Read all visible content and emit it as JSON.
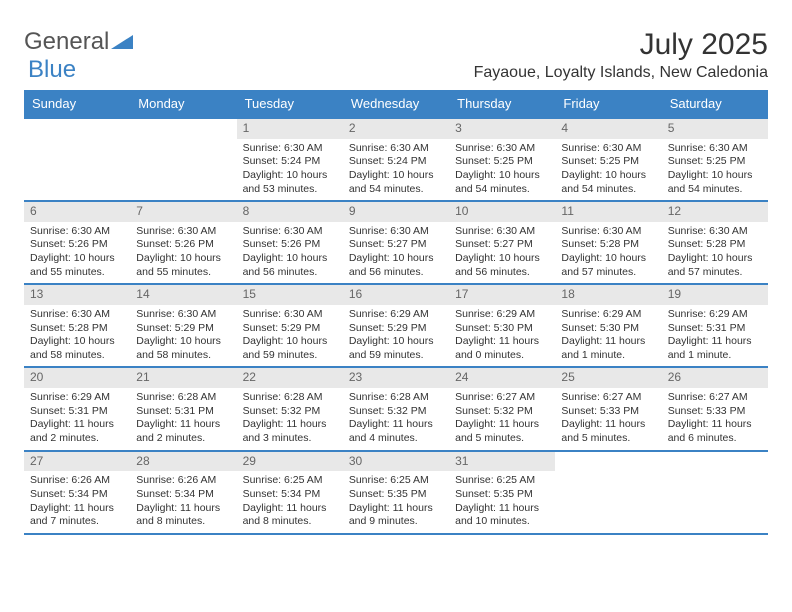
{
  "header": {
    "logo_text_1": "General",
    "logo_text_2": "Blue",
    "logo_color_1": "#777777",
    "logo_color_2": "#3b82c4",
    "month_title": "July 2025",
    "location": "Fayaoue, Loyalty Islands, New Caledonia"
  },
  "style": {
    "header_bg": "#3b82c4",
    "daynum_bg": "#e8e8e8",
    "border_color": "#3b82c4",
    "text_color": "#333333"
  },
  "day_names": [
    "Sunday",
    "Monday",
    "Tuesday",
    "Wednesday",
    "Thursday",
    "Friday",
    "Saturday"
  ],
  "weeks": [
    [
      {
        "n": "",
        "sr": "",
        "ss": "",
        "dl": ""
      },
      {
        "n": "",
        "sr": "",
        "ss": "",
        "dl": ""
      },
      {
        "n": "1",
        "sr": "Sunrise: 6:30 AM",
        "ss": "Sunset: 5:24 PM",
        "dl": "Daylight: 10 hours and 53 minutes."
      },
      {
        "n": "2",
        "sr": "Sunrise: 6:30 AM",
        "ss": "Sunset: 5:24 PM",
        "dl": "Daylight: 10 hours and 54 minutes."
      },
      {
        "n": "3",
        "sr": "Sunrise: 6:30 AM",
        "ss": "Sunset: 5:25 PM",
        "dl": "Daylight: 10 hours and 54 minutes."
      },
      {
        "n": "4",
        "sr": "Sunrise: 6:30 AM",
        "ss": "Sunset: 5:25 PM",
        "dl": "Daylight: 10 hours and 54 minutes."
      },
      {
        "n": "5",
        "sr": "Sunrise: 6:30 AM",
        "ss": "Sunset: 5:25 PM",
        "dl": "Daylight: 10 hours and 54 minutes."
      }
    ],
    [
      {
        "n": "6",
        "sr": "Sunrise: 6:30 AM",
        "ss": "Sunset: 5:26 PM",
        "dl": "Daylight: 10 hours and 55 minutes."
      },
      {
        "n": "7",
        "sr": "Sunrise: 6:30 AM",
        "ss": "Sunset: 5:26 PM",
        "dl": "Daylight: 10 hours and 55 minutes."
      },
      {
        "n": "8",
        "sr": "Sunrise: 6:30 AM",
        "ss": "Sunset: 5:26 PM",
        "dl": "Daylight: 10 hours and 56 minutes."
      },
      {
        "n": "9",
        "sr": "Sunrise: 6:30 AM",
        "ss": "Sunset: 5:27 PM",
        "dl": "Daylight: 10 hours and 56 minutes."
      },
      {
        "n": "10",
        "sr": "Sunrise: 6:30 AM",
        "ss": "Sunset: 5:27 PM",
        "dl": "Daylight: 10 hours and 56 minutes."
      },
      {
        "n": "11",
        "sr": "Sunrise: 6:30 AM",
        "ss": "Sunset: 5:28 PM",
        "dl": "Daylight: 10 hours and 57 minutes."
      },
      {
        "n": "12",
        "sr": "Sunrise: 6:30 AM",
        "ss": "Sunset: 5:28 PM",
        "dl": "Daylight: 10 hours and 57 minutes."
      }
    ],
    [
      {
        "n": "13",
        "sr": "Sunrise: 6:30 AM",
        "ss": "Sunset: 5:28 PM",
        "dl": "Daylight: 10 hours and 58 minutes."
      },
      {
        "n": "14",
        "sr": "Sunrise: 6:30 AM",
        "ss": "Sunset: 5:29 PM",
        "dl": "Daylight: 10 hours and 58 minutes."
      },
      {
        "n": "15",
        "sr": "Sunrise: 6:30 AM",
        "ss": "Sunset: 5:29 PM",
        "dl": "Daylight: 10 hours and 59 minutes."
      },
      {
        "n": "16",
        "sr": "Sunrise: 6:29 AM",
        "ss": "Sunset: 5:29 PM",
        "dl": "Daylight: 10 hours and 59 minutes."
      },
      {
        "n": "17",
        "sr": "Sunrise: 6:29 AM",
        "ss": "Sunset: 5:30 PM",
        "dl": "Daylight: 11 hours and 0 minutes."
      },
      {
        "n": "18",
        "sr": "Sunrise: 6:29 AM",
        "ss": "Sunset: 5:30 PM",
        "dl": "Daylight: 11 hours and 1 minute."
      },
      {
        "n": "19",
        "sr": "Sunrise: 6:29 AM",
        "ss": "Sunset: 5:31 PM",
        "dl": "Daylight: 11 hours and 1 minute."
      }
    ],
    [
      {
        "n": "20",
        "sr": "Sunrise: 6:29 AM",
        "ss": "Sunset: 5:31 PM",
        "dl": "Daylight: 11 hours and 2 minutes."
      },
      {
        "n": "21",
        "sr": "Sunrise: 6:28 AM",
        "ss": "Sunset: 5:31 PM",
        "dl": "Daylight: 11 hours and 2 minutes."
      },
      {
        "n": "22",
        "sr": "Sunrise: 6:28 AM",
        "ss": "Sunset: 5:32 PM",
        "dl": "Daylight: 11 hours and 3 minutes."
      },
      {
        "n": "23",
        "sr": "Sunrise: 6:28 AM",
        "ss": "Sunset: 5:32 PM",
        "dl": "Daylight: 11 hours and 4 minutes."
      },
      {
        "n": "24",
        "sr": "Sunrise: 6:27 AM",
        "ss": "Sunset: 5:32 PM",
        "dl": "Daylight: 11 hours and 5 minutes."
      },
      {
        "n": "25",
        "sr": "Sunrise: 6:27 AM",
        "ss": "Sunset: 5:33 PM",
        "dl": "Daylight: 11 hours and 5 minutes."
      },
      {
        "n": "26",
        "sr": "Sunrise: 6:27 AM",
        "ss": "Sunset: 5:33 PM",
        "dl": "Daylight: 11 hours and 6 minutes."
      }
    ],
    [
      {
        "n": "27",
        "sr": "Sunrise: 6:26 AM",
        "ss": "Sunset: 5:34 PM",
        "dl": "Daylight: 11 hours and 7 minutes."
      },
      {
        "n": "28",
        "sr": "Sunrise: 6:26 AM",
        "ss": "Sunset: 5:34 PM",
        "dl": "Daylight: 11 hours and 8 minutes."
      },
      {
        "n": "29",
        "sr": "Sunrise: 6:25 AM",
        "ss": "Sunset: 5:34 PM",
        "dl": "Daylight: 11 hours and 8 minutes."
      },
      {
        "n": "30",
        "sr": "Sunrise: 6:25 AM",
        "ss": "Sunset: 5:35 PM",
        "dl": "Daylight: 11 hours and 9 minutes."
      },
      {
        "n": "31",
        "sr": "Sunrise: 6:25 AM",
        "ss": "Sunset: 5:35 PM",
        "dl": "Daylight: 11 hours and 10 minutes."
      },
      {
        "n": "",
        "sr": "",
        "ss": "",
        "dl": ""
      },
      {
        "n": "",
        "sr": "",
        "ss": "",
        "dl": ""
      }
    ]
  ]
}
